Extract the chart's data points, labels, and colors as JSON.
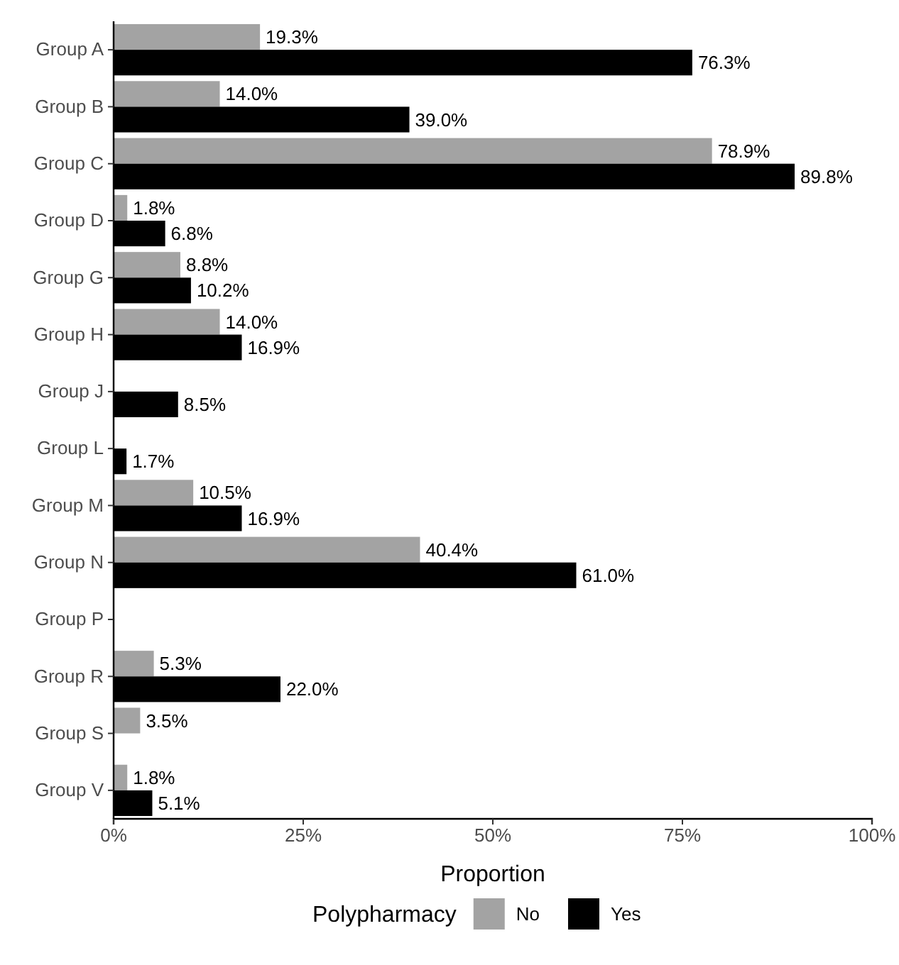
{
  "chart_data": {
    "type": "bar",
    "orientation": "horizontal",
    "xlabel": "Proportion",
    "legend_title": "Polypharmacy",
    "legend": "bottom",
    "categories": [
      "Group A",
      "Group B",
      "Group C",
      "Group D",
      "Group G",
      "Group H",
      "Group J",
      "Group L",
      "Group M",
      "Group N",
      "Group P",
      "Group R",
      "Group S",
      "Group V"
    ],
    "xlim": [
      0,
      100
    ],
    "xticks": [
      {
        "value": 0,
        "label": "0%"
      },
      {
        "value": 25,
        "label": "25%"
      },
      {
        "value": 50,
        "label": "50%"
      },
      {
        "value": 75,
        "label": "75%"
      },
      {
        "value": 100,
        "label": "100%"
      }
    ],
    "grid": false,
    "series": [
      {
        "name": "No",
        "color": "#a3a3a3",
        "values": [
          19.3,
          14.0,
          78.9,
          1.8,
          8.8,
          14.0,
          null,
          null,
          10.5,
          40.4,
          null,
          5.3,
          3.5,
          1.8
        ],
        "value_labels": [
          "19.3%",
          "14.0%",
          "78.9%",
          "1.8%",
          "8.8%",
          "14.0%",
          null,
          null,
          "10.5%",
          "40.4%",
          null,
          "5.3%",
          "3.5%",
          "1.8%"
        ]
      },
      {
        "name": "Yes",
        "color": "#000000",
        "values": [
          76.3,
          39.0,
          89.8,
          6.8,
          10.2,
          16.9,
          8.5,
          1.7,
          16.9,
          61.0,
          null,
          22.0,
          null,
          5.1
        ],
        "value_labels": [
          "76.3%",
          "39.0%",
          "89.8%",
          "6.8%",
          "10.2%",
          "16.9%",
          "8.5%",
          "1.7%",
          "16.9%",
          "61.0%",
          null,
          "22.0%",
          null,
          "5.1%"
        ]
      }
    ]
  }
}
